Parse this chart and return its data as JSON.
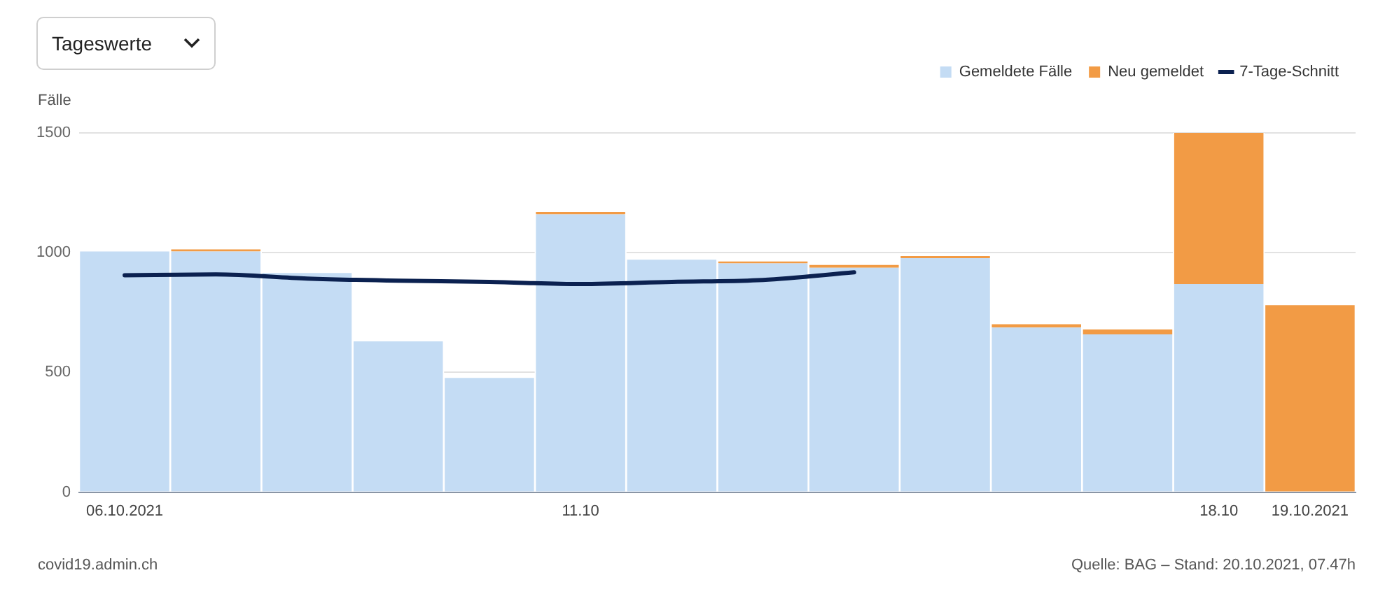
{
  "chart_data": {
    "type": "bar",
    "stacked": true,
    "ylabel": "Fälle",
    "categories": [
      "06.10.2021",
      null,
      null,
      null,
      null,
      "11.10",
      null,
      null,
      null,
      null,
      null,
      null,
      "18.10",
      "19.10.2021"
    ],
    "series": [
      {
        "name": "Gemeldete Fälle",
        "color": "#c4dcf4",
        "values": [
          1005,
          1005,
          915,
          630,
          477,
          1160,
          971,
          955,
          937,
          977,
          687,
          659,
          869,
          0
        ]
      },
      {
        "name": "Neu gemeldet",
        "color": "#f29b45",
        "values": [
          0,
          9,
          0,
          0,
          0,
          10,
          0,
          8,
          12,
          9,
          14,
          20,
          631,
          781
        ]
      },
      {
        "name": "7-Tage-Schnitt",
        "type": "line",
        "color": "#0b2150",
        "values": [
          906,
          909,
          892,
          883,
          878,
          869,
          878,
          886,
          918,
          null,
          null,
          null,
          null,
          null
        ]
      }
    ],
    "ylim": [
      0,
      1500
    ],
    "yticks": [
      0,
      500,
      1000,
      1500
    ],
    "grid": "y",
    "legend": "top right",
    "annotations": [
      "Tageswerte",
      "covid19.admin.ch",
      "Quelle: BAG – Stand: 20.10.2021, 07.47h"
    ]
  }
}
